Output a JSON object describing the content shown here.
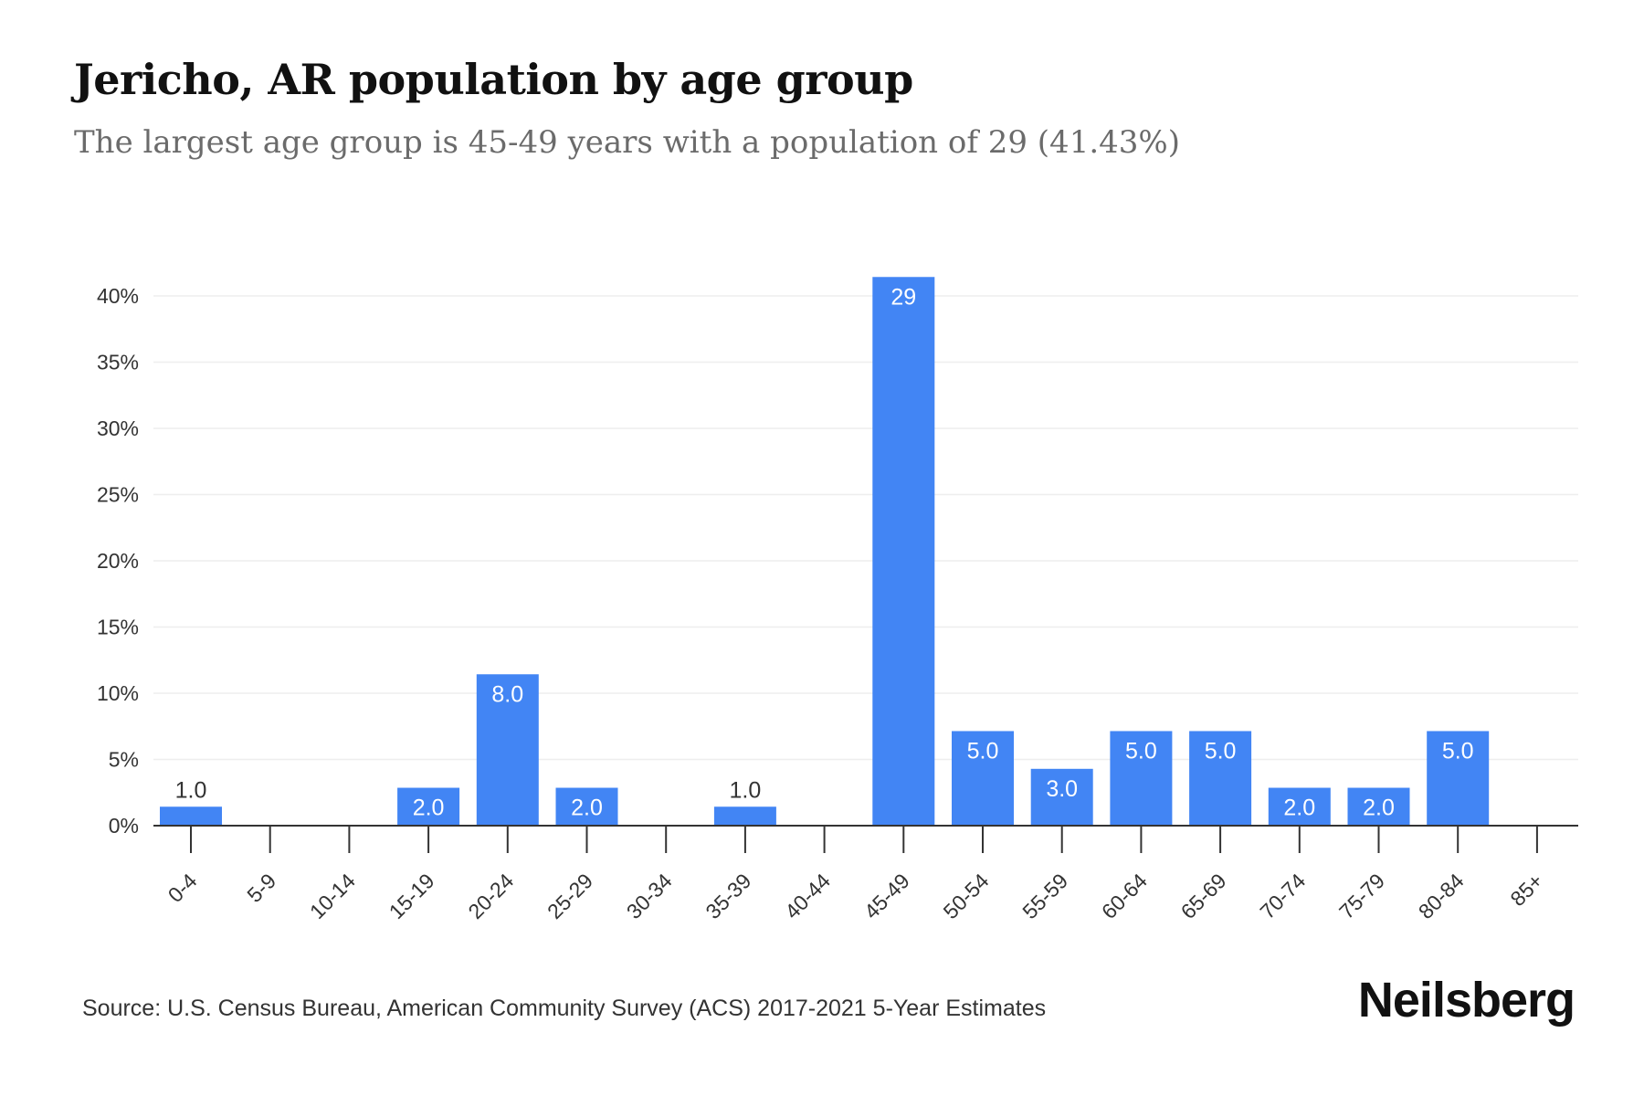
{
  "header": {
    "title": "Jericho, AR population by age group",
    "subtitle": "The largest age group is 45-49 years with a population of 29 (41.43%)"
  },
  "footer": {
    "source": "Source: U.S. Census Bureau, American Community Survey (ACS) 2017-2021 5-Year Estimates",
    "brand": "Neilsberg"
  },
  "colors": {
    "bar": "#4285f4",
    "grid": "#eeeeee",
    "axis": "#333333",
    "label_inside": "#ffffff",
    "label_outside": "#333333"
  },
  "chart_data": {
    "type": "bar",
    "title": "Jericho, AR population by age group",
    "subtitle": "The largest age group is 45-49 years with a population of 29 (41.43%)",
    "categories": [
      "0-4",
      "5-9",
      "10-14",
      "15-19",
      "20-24",
      "25-29",
      "30-34",
      "35-39",
      "40-44",
      "45-49",
      "50-54",
      "55-59",
      "60-64",
      "65-69",
      "70-74",
      "75-79",
      "80-84",
      "85+"
    ],
    "values": [
      1.43,
      0,
      0,
      2.86,
      11.43,
      2.86,
      0,
      1.43,
      0,
      41.43,
      7.14,
      4.29,
      7.14,
      7.14,
      2.86,
      2.86,
      7.14,
      0
    ],
    "data_labels": [
      "1.0",
      "",
      "",
      "2.0",
      "8.0",
      "2.0",
      "",
      "1.0",
      "",
      "29",
      "5.0",
      "3.0",
      "5.0",
      "5.0",
      "2.0",
      "2.0",
      "5.0",
      ""
    ],
    "yticks": [
      0,
      5,
      10,
      15,
      20,
      25,
      30,
      35,
      40
    ],
    "ytick_labels": [
      "0%",
      "5%",
      "10%",
      "15%",
      "20%",
      "25%",
      "30%",
      "35%",
      "40%"
    ],
    "ylim": [
      0,
      42
    ],
    "grid": true,
    "legend": "none"
  }
}
